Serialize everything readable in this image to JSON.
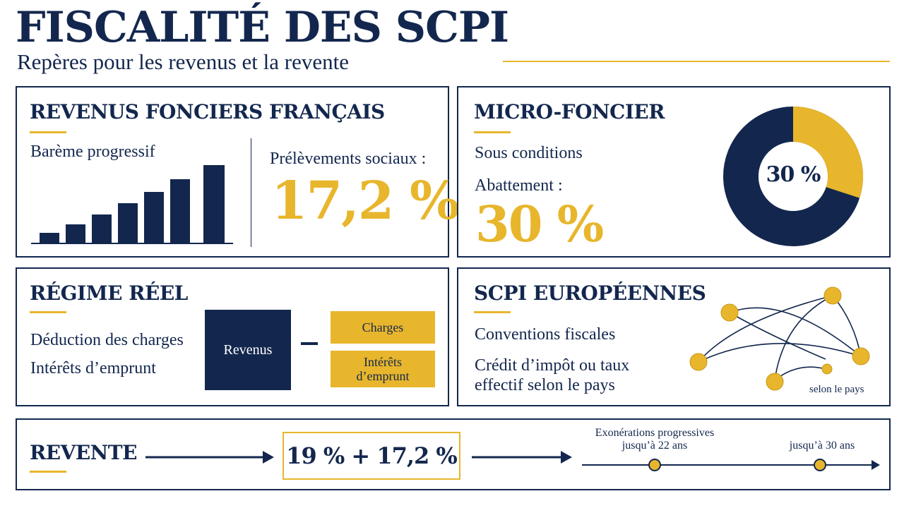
{
  "header": {
    "title": "FISCALITÉ DES SCPI",
    "subtitle": "Repères pour les revenus et la revente"
  },
  "colors": {
    "navy": "#13274e",
    "gold": "#e8b62c"
  },
  "revenus_fonciers": {
    "title": "REVENUS FONCIERS FRANÇAIS",
    "bareme_label": "Barème progressif",
    "prelevements_label": "Prélèvements sociaux :",
    "prelevements_value": "17,2 %"
  },
  "micro_foncier": {
    "title": "MICRO-FONCIER",
    "conditions": "Sous conditions",
    "abattement_label": "Abattement :",
    "abattement_value": "30 %",
    "donut_label": "30 %",
    "donut_share": 0.3
  },
  "regime_reel": {
    "title": "RÉGIME RÉEL",
    "line1": "Déduction des charges",
    "line2": "Intérêts d’emprunt",
    "revenus_box": "Revenus",
    "charges_box": "Charges",
    "interets_box_line1": "Intérêts",
    "interets_box_line2": "d’emprunt"
  },
  "scpi_europeennes": {
    "title": "SCPI EUROPÉENNES",
    "line1": "Conventions fiscales",
    "line2": "Crédit d’impôt ou taux",
    "line3": "effectif selon le pays",
    "network_label": "selon le pays"
  },
  "revente": {
    "title": "REVENTE",
    "rate": "19 % + 17,2 %",
    "timeline_label1_line1": "Exonérations progressives",
    "timeline_label1_line2": "jusqu’à 22 ans",
    "timeline_label2": "jusqu’à 30 ans"
  }
}
